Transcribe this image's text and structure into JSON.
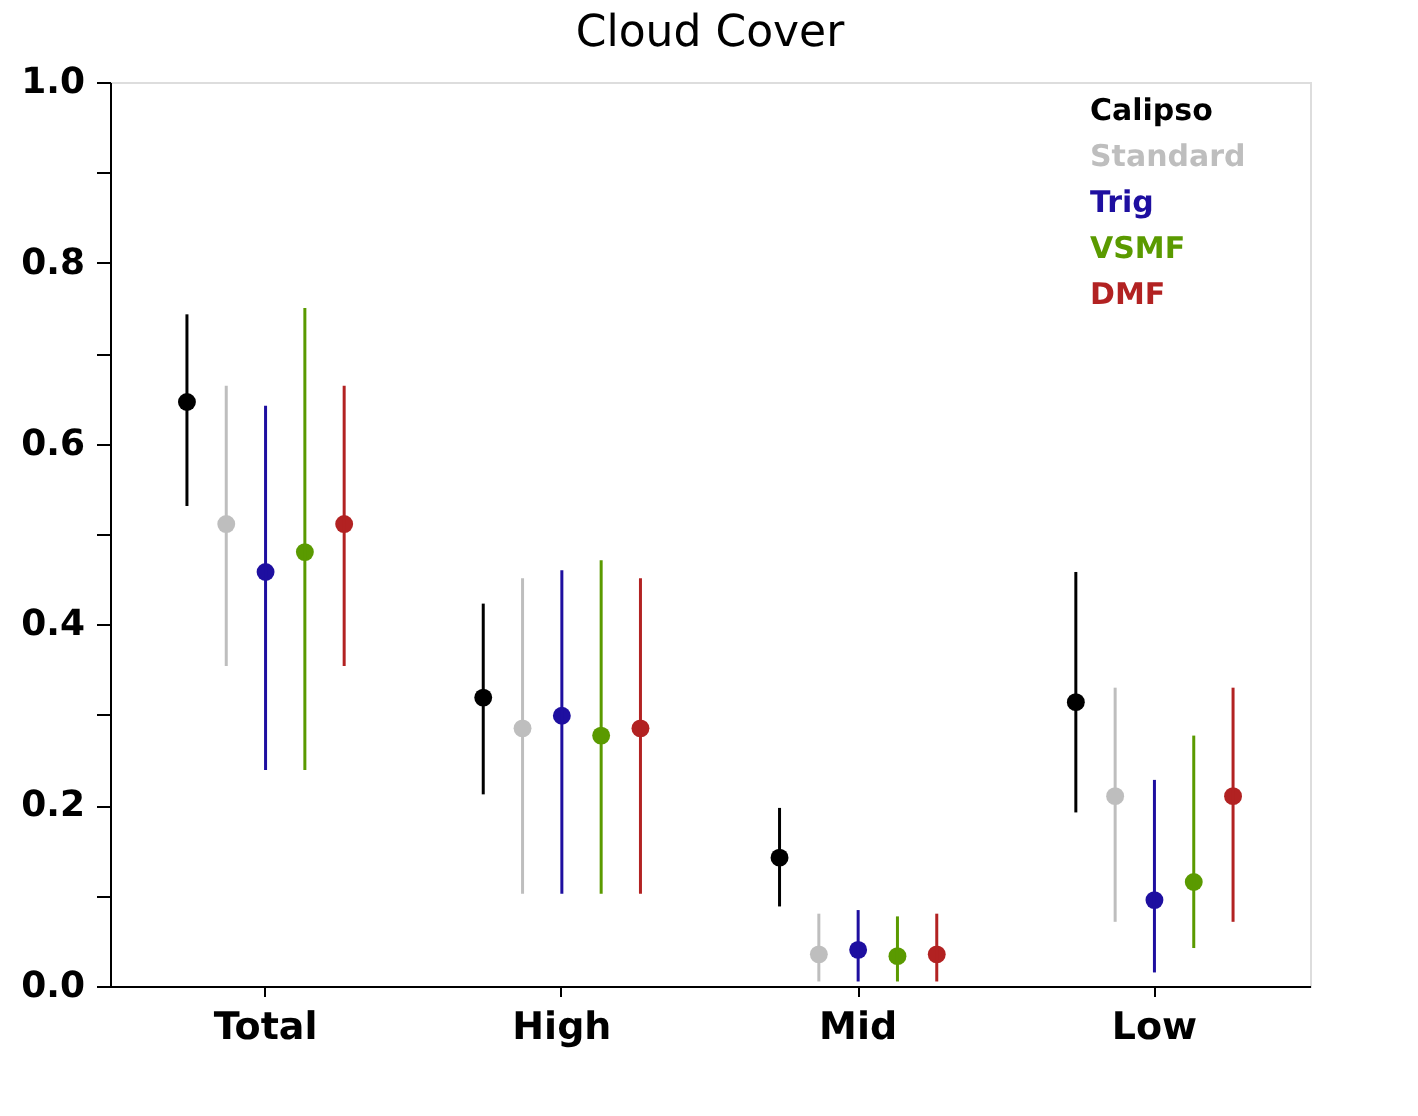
{
  "chart_data": {
    "type": "scatter",
    "title": "Cloud Cover",
    "categories": [
      "Total",
      "High",
      "Mid",
      "Low"
    ],
    "series": [
      {
        "name": "Calipso",
        "color": "#000000",
        "values": [
          0.646,
          0.319,
          0.142,
          0.314
        ],
        "errors": [
          [
            0.531,
            0.743
          ],
          [
            0.212,
            0.423
          ],
          [
            0.088,
            0.197
          ],
          [
            0.192,
            0.458
          ]
        ]
      },
      {
        "name": "Standard",
        "color": "#bebebe",
        "values": [
          0.511,
          0.285,
          0.035,
          0.21
        ],
        "errors": [
          [
            0.354,
            0.664
          ],
          [
            0.102,
            0.451
          ],
          [
            0.005,
            0.08
          ],
          [
            0.071,
            0.33
          ]
        ]
      },
      {
        "name": "Trig",
        "color": "#1e0fa0",
        "values": [
          0.458,
          0.299,
          0.04,
          0.095
        ],
        "errors": [
          [
            0.239,
            0.642
          ],
          [
            0.102,
            0.46
          ],
          [
            0.005,
            0.084
          ],
          [
            0.015,
            0.228
          ]
        ]
      },
      {
        "name": "VSMF",
        "color": "#5a9a00",
        "values": [
          0.48,
          0.277,
          0.033,
          0.115
        ],
        "errors": [
          [
            0.239,
            0.75
          ],
          [
            0.102,
            0.471
          ],
          [
            0.005,
            0.077
          ],
          [
            0.042,
            0.277
          ]
        ]
      },
      {
        "name": "DMF",
        "color": "#b22222",
        "values": [
          0.511,
          0.285,
          0.035,
          0.21
        ],
        "errors": [
          [
            0.354,
            0.664
          ],
          [
            0.102,
            0.451
          ],
          [
            0.005,
            0.08
          ],
          [
            0.071,
            0.33
          ]
        ]
      }
    ],
    "ylim": [
      0,
      1
    ],
    "yticks": [
      {
        "value": 0,
        "label": "0.0"
      },
      {
        "value": 0.1,
        "label": null
      },
      {
        "value": 0.2,
        "label": "0.2"
      },
      {
        "value": 0.3,
        "label": null
      },
      {
        "value": 0.4,
        "label": "0.4"
      },
      {
        "value": 0.5,
        "label": null
      },
      {
        "value": 0.6,
        "label": "0.6"
      },
      {
        "value": 0.7,
        "label": null
      },
      {
        "value": 0.8,
        "label": "0.8"
      },
      {
        "value": 0.9,
        "label": null
      },
      {
        "value": 1,
        "label": "1.0"
      }
    ],
    "grid": false,
    "legend": "top right",
    "marker": "circle"
  }
}
